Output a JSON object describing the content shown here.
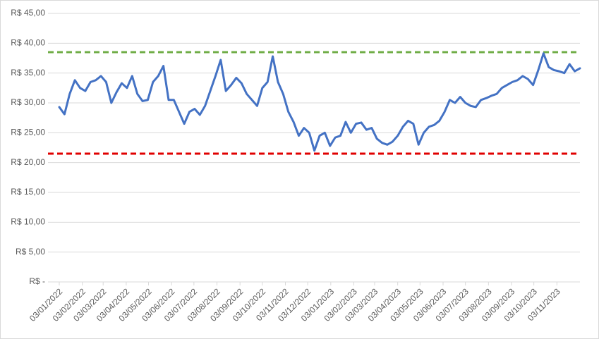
{
  "chart_data": {
    "type": "line",
    "color": "#4472c4",
    "x": [
      "03/01/2022",
      "10/01/2022",
      "17/01/2022",
      "24/01/2022",
      "31/01/2022",
      "07/02/2022",
      "14/02/2022",
      "21/02/2022",
      "28/02/2022",
      "07/03/2022",
      "14/03/2022",
      "21/03/2022",
      "28/03/2022",
      "04/04/2022",
      "11/04/2022",
      "18/04/2022",
      "25/04/2022",
      "02/05/2022",
      "09/05/2022",
      "16/05/2022",
      "23/05/2022",
      "30/05/2022",
      "06/06/2022",
      "13/06/2022",
      "20/06/2022",
      "27/06/2022",
      "04/07/2022",
      "11/07/2022",
      "18/07/2022",
      "25/07/2022",
      "01/08/2022",
      "08/08/2022",
      "15/08/2022",
      "22/08/2022",
      "29/08/2022",
      "05/09/2022",
      "12/09/2022",
      "19/09/2022",
      "26/09/2022",
      "03/10/2022",
      "10/10/2022",
      "17/10/2022",
      "24/10/2022",
      "31/10/2022",
      "07/11/2022",
      "14/11/2022",
      "21/11/2022",
      "28/11/2022",
      "05/12/2022",
      "12/12/2022",
      "19/12/2022",
      "26/12/2022",
      "02/01/2023",
      "09/01/2023",
      "16/01/2023",
      "23/01/2023",
      "30/01/2023",
      "06/02/2023",
      "13/02/2023",
      "20/02/2023",
      "27/02/2023",
      "06/03/2023",
      "13/03/2023",
      "20/03/2023",
      "27/03/2023",
      "03/04/2023",
      "10/04/2023",
      "17/04/2023",
      "24/04/2023",
      "01/05/2023",
      "08/05/2023",
      "15/05/2023",
      "22/05/2023",
      "29/05/2023",
      "05/06/2023",
      "12/06/2023",
      "19/06/2023",
      "26/06/2023",
      "03/07/2023",
      "10/07/2023",
      "17/07/2023",
      "24/07/2023",
      "31/07/2023",
      "07/08/2023",
      "14/08/2023",
      "21/08/2023",
      "28/08/2023",
      "04/09/2023",
      "11/09/2023",
      "18/09/2023",
      "25/09/2023",
      "02/10/2023",
      "09/10/2023",
      "16/10/2023",
      "23/10/2023",
      "30/10/2023",
      "06/11/2023",
      "13/11/2023",
      "20/11/2023",
      "27/11/2023",
      "04/12/2023"
    ],
    "values": [
      29.3,
      28.1,
      31.5,
      33.8,
      32.5,
      32.0,
      33.5,
      33.8,
      34.5,
      33.5,
      30.0,
      31.8,
      33.3,
      32.5,
      34.5,
      31.5,
      30.3,
      30.5,
      33.5,
      34.5,
      36.2,
      30.5,
      30.5,
      28.5,
      26.5,
      28.5,
      29.0,
      28.0,
      29.5,
      32.0,
      34.5,
      37.2,
      32.0,
      33.0,
      34.2,
      33.3,
      31.5,
      30.5,
      29.5,
      32.5,
      33.5,
      37.8,
      33.5,
      31.5,
      28.5,
      26.8,
      24.5,
      25.8,
      25.0,
      22.0,
      24.5,
      25.0,
      22.8,
      24.2,
      24.5,
      26.8,
      25.0,
      26.5,
      26.7,
      25.5,
      25.8,
      24.0,
      23.3,
      23.0,
      23.5,
      24.5,
      26.0,
      27.0,
      26.5,
      23.0,
      25.0,
      26.0,
      26.3,
      27.0,
      28.5,
      30.5,
      30.0,
      31.0,
      30.0,
      29.5,
      29.3,
      30.5,
      30.8,
      31.2,
      31.5,
      32.5,
      33.0,
      33.5,
      33.8,
      34.5,
      34.0,
      33.0,
      35.5,
      38.3,
      36.0,
      35.5,
      35.3,
      35.0,
      36.5,
      35.3,
      35.8
    ],
    "xlim": [
      "03/01/2022",
      "04/12/2023"
    ],
    "xticks": [
      "03/01/2022",
      "03/02/2022",
      "03/03/2022",
      "03/04/2022",
      "03/05/2022",
      "03/06/2022",
      "03/07/2022",
      "03/08/2022",
      "03/09/2022",
      "03/10/2022",
      "03/11/2022",
      "03/12/2022",
      "03/01/2023",
      "03/02/2023",
      "03/03/2023",
      "03/04/2023",
      "03/05/2023",
      "03/06/2023",
      "03/07/2023",
      "03/08/2023",
      "03/09/2023",
      "03/10/2023",
      "03/11/2023"
    ],
    "ylim": [
      0,
      45
    ],
    "yticks": [
      {
        "value": 0,
        "label": "R$ -"
      },
      {
        "value": 5,
        "label": "R$ 5,00"
      },
      {
        "value": 10,
        "label": "R$ 10,00"
      },
      {
        "value": 15,
        "label": "R$ 15,00"
      },
      {
        "value": 20,
        "label": "R$ 20,00"
      },
      {
        "value": 25,
        "label": "R$ 25,00"
      },
      {
        "value": 30,
        "label": "R$ 30,00"
      },
      {
        "value": 35,
        "label": "R$ 35,00"
      },
      {
        "value": 40,
        "label": "R$ 40,00"
      },
      {
        "value": 45,
        "label": "R$ 45,00"
      }
    ],
    "grid": true,
    "hlines": [
      {
        "value": 38.5,
        "color": "#70ad47"
      },
      {
        "value": 21.5,
        "color": "#e00000"
      }
    ]
  }
}
